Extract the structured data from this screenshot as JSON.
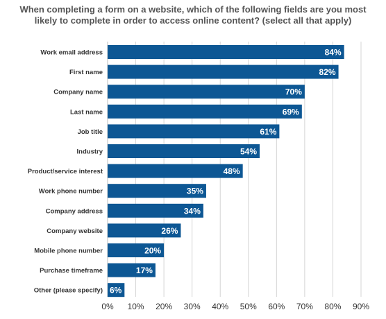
{
  "chart_data": {
    "type": "bar",
    "orientation": "horizontal",
    "title_lines": [
      "When completing a form on a website, which of the following fields are you most",
      "likely to complete in order to access online content? (select all that apply)"
    ],
    "categories": [
      "Work email address",
      "First name",
      "Company name",
      "Last name",
      "Job title",
      "Industry",
      "Product/service interest",
      "Work phone number",
      "Company address",
      "Company website",
      "Mobile phone number",
      "Purchase timeframe",
      "Other (please specify)"
    ],
    "values": [
      84,
      82,
      70,
      69,
      61,
      54,
      48,
      35,
      34,
      26,
      20,
      17,
      6
    ],
    "value_labels": [
      "84%",
      "82%",
      "70%",
      "69%",
      "61%",
      "54%",
      "48%",
      "35%",
      "34%",
      "26%",
      "20%",
      "17%",
      "6%"
    ],
    "xlim": [
      0,
      90
    ],
    "xticks": [
      0,
      10,
      20,
      30,
      40,
      50,
      60,
      70,
      80,
      90
    ],
    "xtick_labels": [
      "0%",
      "10%",
      "20%",
      "30%",
      "40%",
      "50%",
      "60%",
      "70%",
      "80%",
      "90%"
    ],
    "grid": true,
    "bar_color": "#0d5794",
    "grid_color": "#d4d4d4"
  }
}
